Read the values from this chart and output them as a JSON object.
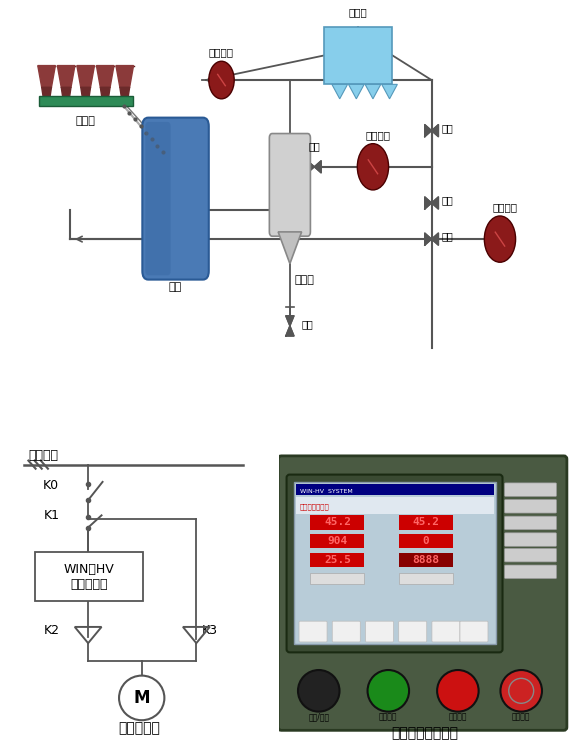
{
  "bg_color": "#ffffff",
  "lc": "#555555",
  "elec_labels": {
    "bus": "高压母线",
    "K0": "K0",
    "K1": "K1",
    "K2": "K2",
    "K3": "K3",
    "inverter_line1": "WIN－HV",
    "inverter_line2": "高压变频器",
    "motor": "M",
    "elec_caption": "电气系统图"
  },
  "touch_caption": "触摸屏现场运行图",
  "process_labels": {
    "peilaozhan": "配料站",
    "moji": "磨机",
    "junhuaku": "均化库",
    "men": "阀门",
    "chuchenfengji": "除尘风机",
    "shouchengqi": "收尘器",
    "xunhuanfengji": "循环风机",
    "gaowenfengji": "高温风机"
  }
}
